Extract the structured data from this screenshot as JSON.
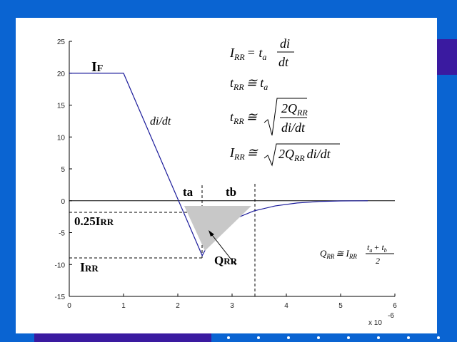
{
  "chart_data": {
    "type": "line",
    "x": [
      0,
      1,
      2.45,
      2.6,
      2.8,
      3.0,
      3.4,
      3.8,
      4.2,
      4.6,
      5.0,
      5.5
    ],
    "series": [
      {
        "color": "#1a1a9a",
        "values": [
          20,
          20,
          -8.6,
          -6.2,
          -4.3,
          -3.0,
          -1.6,
          -0.8,
          -0.35,
          -0.12,
          -0.03,
          0
        ]
      }
    ],
    "xlim": [
      0,
      6
    ],
    "ylim": [
      -15,
      25
    ],
    "xticks": [
      0,
      1,
      2,
      3,
      4,
      5,
      6
    ],
    "yticks": [
      -15,
      -10,
      -5,
      0,
      5,
      10,
      15,
      20,
      25
    ],
    "x_multiplier": [
      "x 10",
      "-6"
    ],
    "annotations": {
      "i_f": [
        "I",
        "F"
      ],
      "didt": "di/dt",
      "ta": [
        "t",
        "a"
      ],
      "tb": [
        "t",
        "b"
      ],
      "quarter": [
        "0.25I",
        "RR"
      ],
      "irr": [
        "I",
        "RR"
      ],
      "qrr": [
        "Q",
        "RR"
      ]
    },
    "formulas": [
      [
        "I",
        "RR",
        "= t",
        "a",
        "di",
        "dt"
      ],
      [
        "t",
        "RR",
        "≅ t",
        "a"
      ],
      [
        "t",
        "RR",
        "≅",
        "2Q",
        "RR",
        "di/dt"
      ],
      [
        "I",
        "RR",
        "≅",
        "2Q",
        "RR",
        "di/dt"
      ],
      [
        "Q",
        "RR",
        "≅ I",
        "RR",
        "t",
        "a",
        "+ t",
        "b",
        "2"
      ]
    ]
  }
}
